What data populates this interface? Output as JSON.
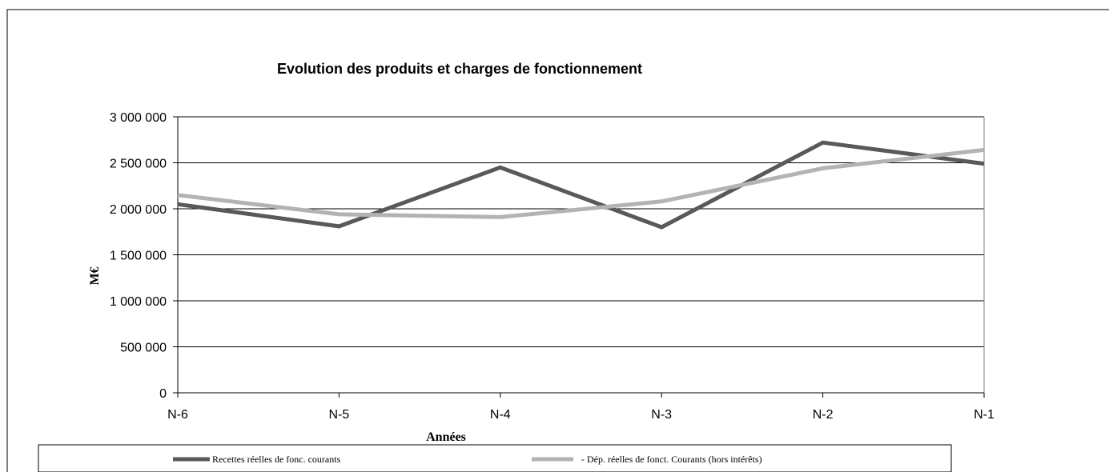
{
  "chart_data": {
    "type": "line",
    "title": "Evolution des produits et charges de fonctionnement",
    "xlabel": "Années",
    "ylabel": "M€",
    "categories": [
      "N-6",
      "N-5",
      "N-4",
      "N-3",
      "N-2",
      "N-1"
    ],
    "ylim": [
      0,
      3000000
    ],
    "yticks": [
      0,
      500000,
      1000000,
      1500000,
      2000000,
      2500000,
      3000000
    ],
    "ytick_labels": [
      "0",
      "500 000",
      "1 000 000",
      "1 500 000",
      "2 000 000",
      "2 500 000",
      "3 000 000"
    ],
    "grid": true,
    "legend_position": "bottom",
    "series": [
      {
        "name": "Recettes réelles de fonc. courants",
        "color": "#595959",
        "values": [
          2050000,
          1810000,
          2450000,
          1800000,
          2720000,
          2490000
        ]
      },
      {
        "name": "- Dép. réelles de fonct. Courants (hors intérêts)",
        "color": "#b3b3b3",
        "values": [
          2150000,
          1940000,
          1910000,
          2080000,
          2440000,
          2640000
        ]
      }
    ]
  }
}
